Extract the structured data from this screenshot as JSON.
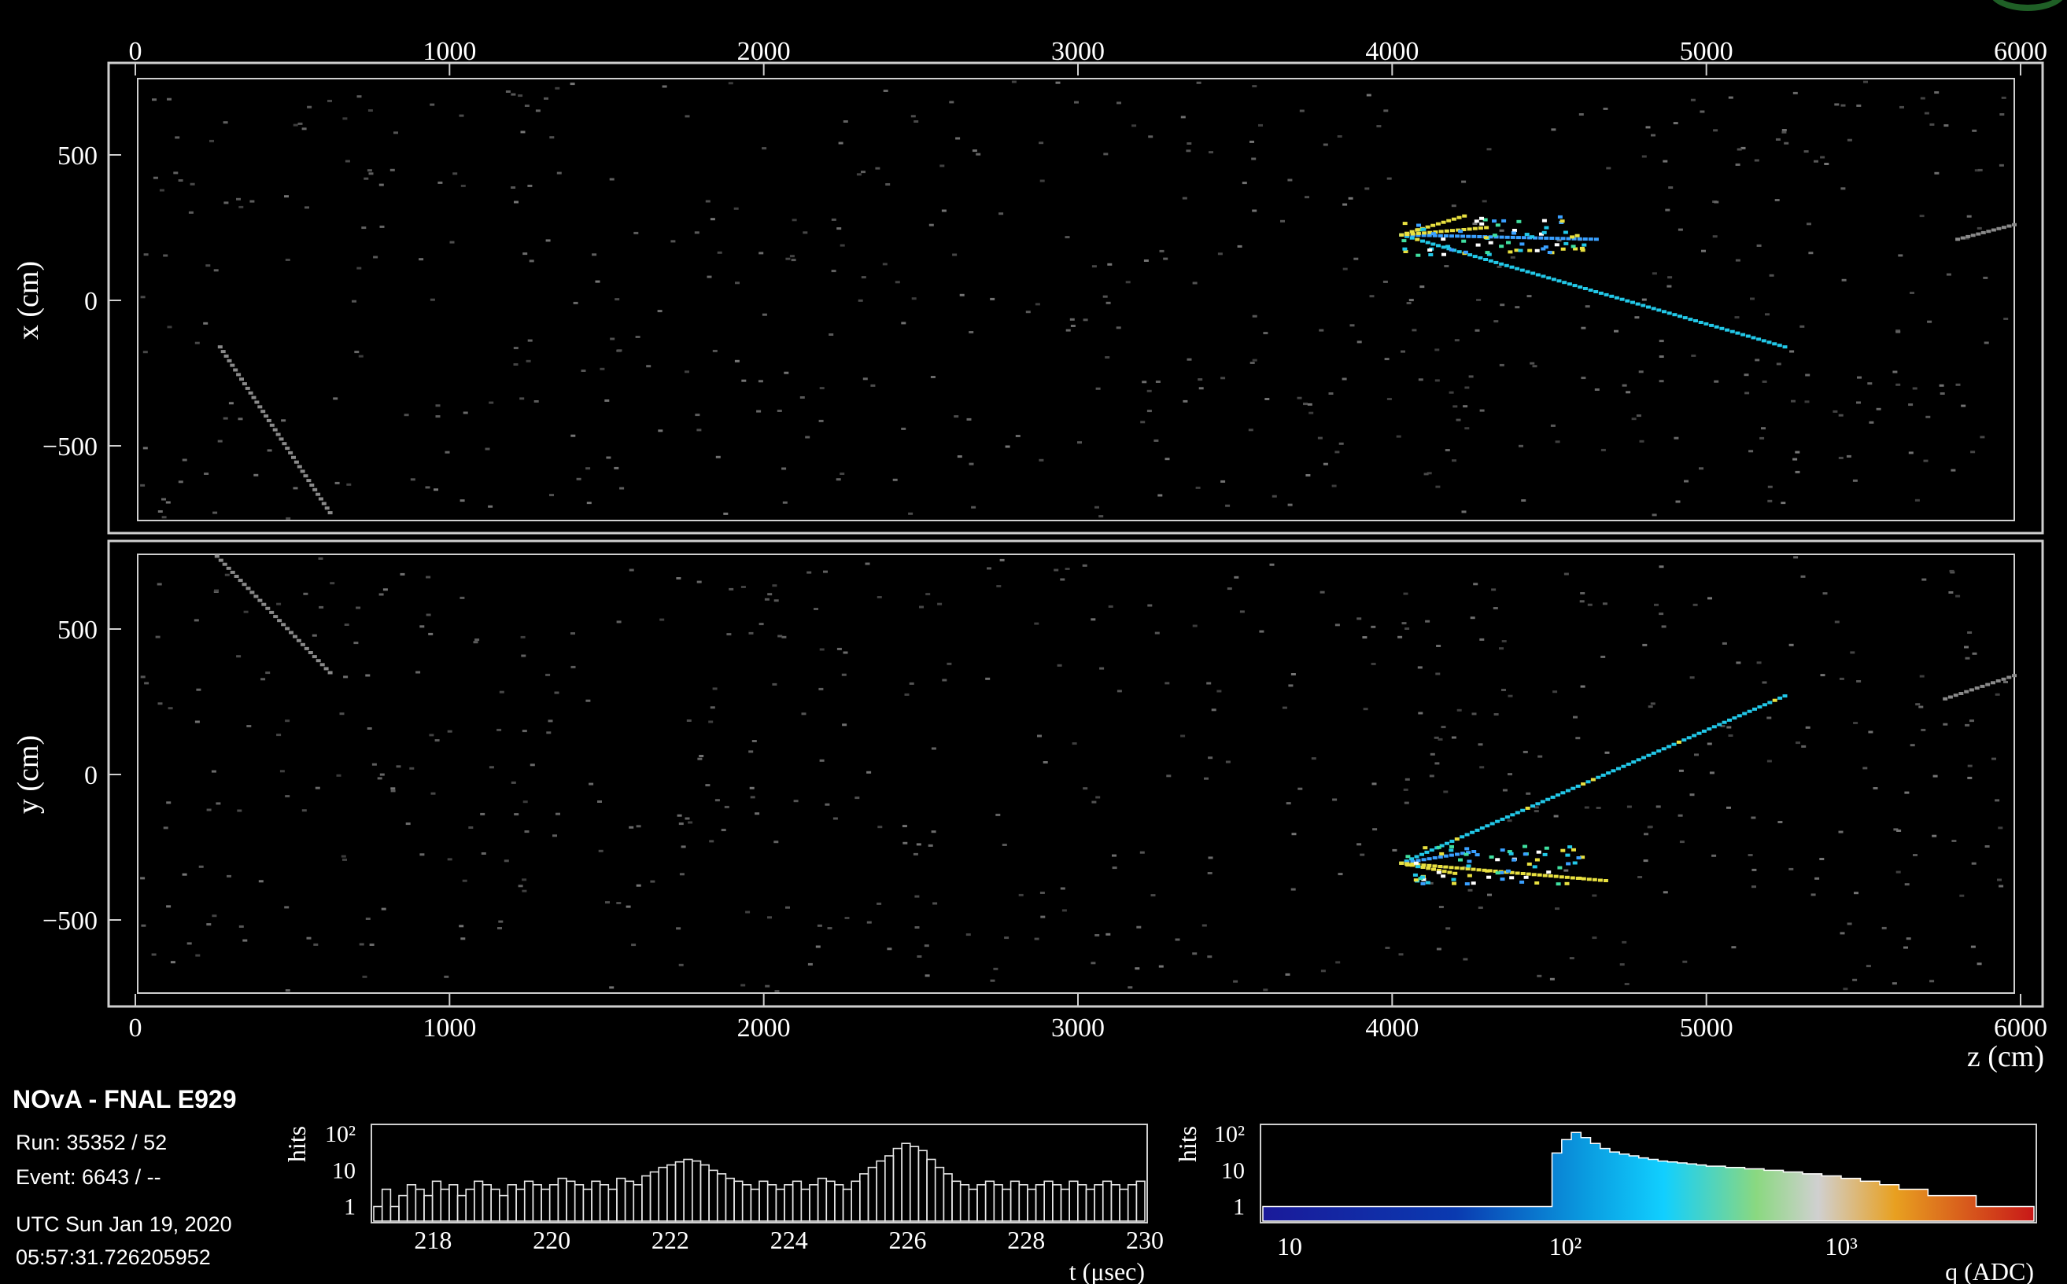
{
  "info": {
    "experiment": "NOvA - FNAL E929",
    "run": "Run:   35352 / 52",
    "event": "Event: 6643 / --",
    "date": "UTC Sun Jan 19, 2020",
    "time": "05:57:31.726205952"
  },
  "colors": {
    "background": "#000000",
    "frame": "#cfcfcf",
    "hit": "#8a8a8a",
    "track": "#22c8e8",
    "track_hot": "#e8e040",
    "track_mid": "#3aa0ff"
  },
  "chart_data": [
    {
      "type": "scatter",
      "panel": "xz-view",
      "xlabel": "",
      "ylabel": "x (cm)",
      "xlim": [
        -100,
        6100
      ],
      "ylim": [
        -780,
        780
      ],
      "xticks": [
        "0",
        "1000",
        "2000",
        "3000",
        "4000",
        "5000",
        "6000"
      ],
      "yticks": [
        "500",
        "0",
        "−500"
      ],
      "tracks": [
        {
          "name": "",
          "points": [
            [
              4030,
              225
            ],
            [
              5250,
              -160
            ]
          ],
          "color": "track"
        },
        {
          "name": "",
          "points": [
            [
              4030,
              225
            ],
            [
              4230,
              290
            ]
          ],
          "color": "track_hot"
        },
        {
          "name": "",
          "points": [
            [
              4030,
              225
            ],
            [
              4650,
              210
            ]
          ],
          "color": "track_mid"
        },
        {
          "name": "",
          "points": [
            [
              4030,
              225
            ],
            [
              4300,
              250
            ]
          ],
          "color": "track_hot"
        },
        {
          "name": "",
          "points": [
            [
              270,
              -160
            ],
            [
              620,
              -730
            ]
          ],
          "color": "hit"
        },
        {
          "name": "",
          "points": [
            [
              5800,
              210
            ],
            [
              5980,
              260
            ]
          ],
          "color": "hit"
        }
      ]
    },
    {
      "type": "scatter",
      "panel": "yz-view",
      "xlabel": "z (cm)",
      "ylabel": "y (cm)",
      "xlim": [
        -100,
        6100
      ],
      "ylim": [
        -780,
        780
      ],
      "xticks": [
        "0",
        "1000",
        "2000",
        "3000",
        "4000",
        "5000",
        "6000"
      ],
      "yticks": [
        "500",
        "0",
        "−500"
      ],
      "tracks": [
        {
          "name": "",
          "points": [
            [
              4030,
              -305
            ],
            [
              5250,
              270
            ]
          ],
          "color": "track"
        },
        {
          "name": "",
          "points": [
            [
              4030,
              -305
            ],
            [
              4260,
              -265
            ]
          ],
          "color": "track_mid"
        },
        {
          "name": "",
          "points": [
            [
              4030,
              -305
            ],
            [
              4680,
              -365
            ]
          ],
          "color": "track_hot"
        },
        {
          "name": "",
          "points": [
            [
              4030,
              -305
            ],
            [
              4200,
              -340
            ]
          ],
          "color": "track_hot"
        },
        {
          "name": "",
          "points": [
            [
              260,
              750
            ],
            [
              620,
              350
            ]
          ],
          "color": "hit"
        },
        {
          "name": "",
          "points": [
            [
              5760,
              260
            ],
            [
              5980,
              340
            ]
          ],
          "color": "hit"
        }
      ]
    },
    {
      "type": "bar",
      "panel": "time-histogram",
      "xlabel": "t (μsec)",
      "ylabel": "hits",
      "xlim": [
        217,
        230
      ],
      "xticks": [
        "218",
        "220",
        "222",
        "224",
        "226",
        "228",
        "230"
      ],
      "yticks": [
        "10²",
        "10",
        "1"
      ],
      "log_y": true,
      "values": [
        1,
        3,
        1,
        2,
        4,
        3,
        2,
        5,
        3,
        4,
        2,
        3,
        5,
        4,
        3,
        2,
        4,
        3,
        5,
        4,
        3,
        4,
        6,
        5,
        4,
        3,
        5,
        4,
        3,
        6,
        5,
        4,
        7,
        9,
        12,
        14,
        17,
        20,
        18,
        14,
        10,
        8,
        6,
        5,
        4,
        3,
        5,
        4,
        3,
        4,
        5,
        3,
        4,
        6,
        5,
        4,
        3,
        5,
        8,
        12,
        18,
        25,
        40,
        55,
        45,
        35,
        20,
        12,
        8,
        5,
        4,
        3,
        4,
        5,
        4,
        3,
        5,
        4,
        3,
        4,
        5,
        4,
        3,
        5,
        4,
        3,
        4,
        5,
        4,
        3,
        4,
        5
      ]
    },
    {
      "type": "bar",
      "panel": "charge-histogram",
      "xlabel": "q (ADC)",
      "ylabel": "hits",
      "xlim": [
        8,
        5000
      ],
      "log_x": true,
      "log_y": true,
      "xticks": [
        "10",
        "10²",
        "10³"
      ],
      "yticks": [
        "10²",
        "10",
        "1"
      ],
      "values": [
        1,
        1,
        1,
        1,
        1,
        1,
        1,
        1,
        1,
        1,
        1,
        1,
        1,
        1,
        1,
        1,
        1,
        1,
        1,
        1,
        1,
        1,
        1,
        1,
        1,
        1,
        1,
        1,
        1,
        1,
        30,
        70,
        110,
        80,
        55,
        40,
        32,
        28,
        25,
        22,
        20,
        18,
        17,
        16,
        15,
        14,
        13,
        13,
        12,
        12,
        11,
        11,
        10,
        10,
        9,
        9,
        8,
        8,
        7,
        7,
        6,
        6,
        5,
        5,
        4,
        4,
        3,
        3,
        3,
        2,
        2,
        2,
        2,
        2,
        1,
        1,
        1,
        1,
        1,
        1
      ]
    }
  ]
}
